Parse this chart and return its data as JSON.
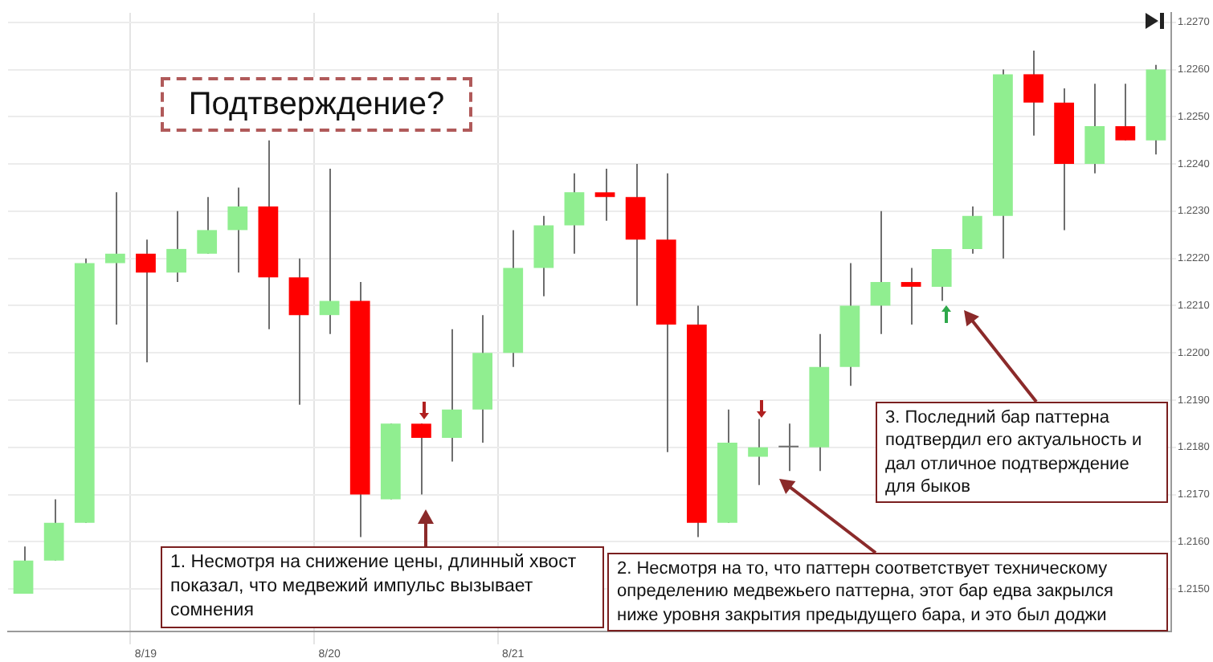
{
  "chart_data": {
    "type": "candlestick",
    "categories": [
      null,
      null,
      null,
      null,
      "8/19",
      null,
      null,
      null,
      null,
      null,
      "8/20",
      null,
      null,
      null,
      null,
      null,
      "8/21",
      null,
      null,
      null,
      null,
      null,
      null,
      null,
      null,
      null,
      null,
      null,
      null,
      null,
      null,
      null,
      null,
      null,
      null,
      null,
      null,
      null
    ],
    "ohlc": [
      [
        1.2149,
        1.2159,
        1.2149,
        1.2156
      ],
      [
        1.2156,
        1.2169,
        1.2156,
        1.2164
      ],
      [
        1.2164,
        1.222,
        1.2164,
        1.2219
      ],
      [
        1.2219,
        1.2234,
        1.2206,
        1.2221
      ],
      [
        1.2221,
        1.2224,
        1.2198,
        1.2217
      ],
      [
        1.2217,
        1.223,
        1.2215,
        1.2222
      ],
      [
        1.2221,
        1.2233,
        1.2221,
        1.2226
      ],
      [
        1.2226,
        1.2235,
        1.2217,
        1.2231
      ],
      [
        1.2231,
        1.2245,
        1.2205,
        1.2216
      ],
      [
        1.2216,
        1.222,
        1.2189,
        1.2208
      ],
      [
        1.2208,
        1.2239,
        1.2204,
        1.2211
      ],
      [
        1.2211,
        1.2215,
        1.2161,
        1.217
      ],
      [
        1.2169,
        1.2185,
        1.2169,
        1.2185
      ],
      [
        1.2185,
        1.2185,
        1.217,
        1.2182
      ],
      [
        1.2182,
        1.2205,
        1.2177,
        1.2188
      ],
      [
        1.2188,
        1.2208,
        1.2181,
        1.22
      ],
      [
        1.22,
        1.2226,
        1.2197,
        1.2218
      ],
      [
        1.2218,
        1.2229,
        1.2212,
        1.2227
      ],
      [
        1.2227,
        1.2238,
        1.2221,
        1.2234
      ],
      [
        1.2234,
        1.2239,
        1.2228,
        1.2233
      ],
      [
        1.2233,
        1.224,
        1.221,
        1.2224
      ],
      [
        1.2224,
        1.2238,
        1.2179,
        1.2206
      ],
      [
        1.2206,
        1.221,
        1.2161,
        1.2164
      ],
      [
        1.2164,
        1.2188,
        1.2164,
        1.2181
      ],
      [
        1.2178,
        1.2186,
        1.2172,
        1.218
      ],
      [
        1.218,
        1.2185,
        1.2175,
        1.218
      ],
      [
        1.218,
        1.2204,
        1.2175,
        1.2197
      ],
      [
        1.2197,
        1.2219,
        1.2193,
        1.221
      ],
      [
        1.221,
        1.223,
        1.2204,
        1.2215
      ],
      [
        1.2215,
        1.2218,
        1.2206,
        1.2214
      ],
      [
        1.2214,
        1.2222,
        1.2211,
        1.2222
      ],
      [
        1.2222,
        1.2231,
        1.2221,
        1.2229
      ],
      [
        1.2229,
        1.226,
        1.222,
        1.2259
      ],
      [
        1.2259,
        1.2264,
        1.2246,
        1.2253
      ],
      [
        1.2253,
        1.2256,
        1.2226,
        1.224
      ],
      [
        1.224,
        1.2257,
        1.2238,
        1.2248
      ],
      [
        1.2248,
        1.2257,
        1.2245,
        1.2245
      ],
      [
        1.2245,
        1.2261,
        1.2242,
        1.226
      ]
    ],
    "colors": [
      "#90ee90",
      "#90ee90",
      "#90ee90",
      "#90ee90",
      "#ff0000",
      "#90ee90",
      "#90ee90",
      "#90ee90",
      "#ff0000",
      "#ff0000",
      "#90ee90",
      "#ff0000",
      "#90ee90",
      "#ff0000",
      "#90ee90",
      "#90ee90",
      "#90ee90",
      "#90ee90",
      "#90ee90",
      "#ff0000",
      "#ff0000",
      "#ff0000",
      "#ff0000",
      "#90ee90",
      "#90ee90",
      "#6e6e6e",
      "#90ee90",
      "#90ee90",
      "#90ee90",
      "#ff0000",
      "#90ee90",
      "#90ee90",
      "#90ee90",
      "#ff0000",
      "#ff0000",
      "#90ee90",
      "#ff0000",
      "#90ee90"
    ],
    "ylim": [
      1.2141,
      1.2272
    ],
    "yticks": [
      {
        "value": 1.215,
        "label": "1.2150"
      },
      {
        "value": 1.216,
        "label": "1.2160"
      },
      {
        "value": 1.217,
        "label": "1.2170"
      },
      {
        "value": 1.218,
        "label": "1.2180"
      },
      {
        "value": 1.219,
        "label": "1.2190"
      },
      {
        "value": 1.22,
        "label": "1.2200"
      },
      {
        "value": 1.221,
        "label": "1.2210"
      },
      {
        "value": 1.222,
        "label": "1.2220"
      },
      {
        "value": 1.223,
        "label": "1.2230"
      },
      {
        "value": 1.224,
        "label": "1.2240"
      },
      {
        "value": 1.225,
        "label": "1.2250"
      },
      {
        "value": 1.226,
        "label": "1.2260"
      },
      {
        "value": 1.227,
        "label": "1.2270"
      }
    ],
    "grid": true,
    "annotations": [
      "Подтверждение?",
      "1. Несмотря на снижение цены, длинный хвост показал, что медвежий импульс вызывает сомнения",
      "2. Несмотря на то, что паттерн соответствует техническому определению медвежьего паттерна, этот бар едва закрылся ниже уровня закрытия предыдущего бара, и это был доджи",
      "3. Последний бар паттерна подтвердил его актуальность и дал отличное подтверждение для быков"
    ]
  }
}
